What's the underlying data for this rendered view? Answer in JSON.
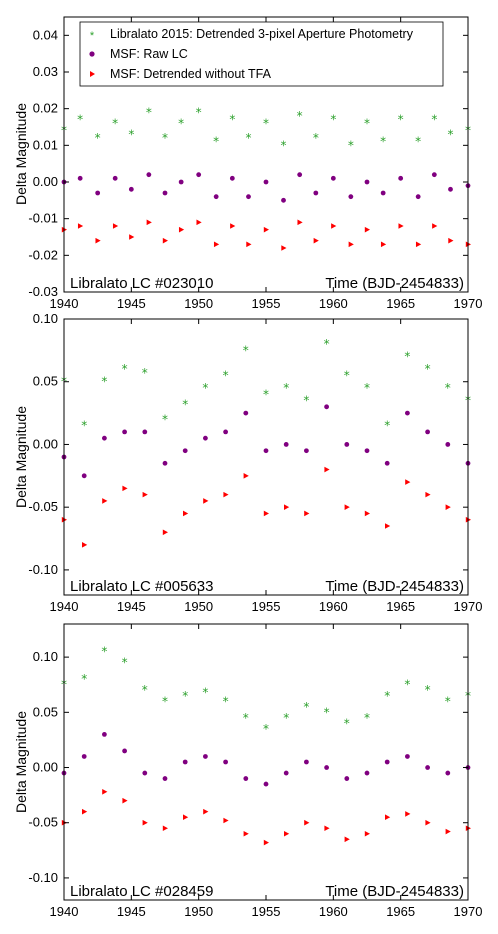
{
  "colors": {
    "green": "#2ca02c",
    "purple": "#800080",
    "red": "#ff0000"
  },
  "chart_data": [
    {
      "type": "scatter",
      "title": "Libralato LC #023010",
      "xlabel": "Time (BJD-2454833)",
      "ylabel": "Delta Magnitude",
      "xlim": [
        1940,
        1970
      ],
      "ylim": [
        -0.03,
        0.045
      ],
      "xticks": [
        1940,
        1945,
        1950,
        1955,
        1960,
        1965,
        1970
      ],
      "xtick_labels": [
        "1940",
        "1945",
        "1950",
        "1955",
        "1960",
        "1965",
        "1970"
      ],
      "yticks": [
        -0.03,
        -0.02,
        -0.01,
        0.0,
        0.01,
        0.02,
        0.03,
        0.04
      ],
      "ytick_labels": [
        "-0.03",
        "-0.02",
        "-0.01",
        "0.00",
        "0.01",
        "0.02",
        "0.03",
        "0.04"
      ],
      "grid": false,
      "legend": {
        "placement": "top-right",
        "entries": [
          {
            "label": "Libralato 2015: Detrended 3-pixel Aperture Photometry",
            "marker": "star",
            "color": "#2ca02c"
          },
          {
            "label": "MSF: Raw LC",
            "marker": "circle",
            "color": "#800080"
          },
          {
            "label": "MSF: Detrended without TFA",
            "marker": "triangle",
            "color": "#ff0000"
          }
        ]
      },
      "series": [
        {
          "name": "Libralato 2015: Detrended 3-pixel Aperture Photometry",
          "marker": "star",
          "color": "#2ca02c",
          "x": [
            1940,
            1941.2,
            1942.5,
            1943.8,
            1945,
            1946.3,
            1947.5,
            1948.7,
            1950,
            1951.3,
            1952.5,
            1953.7,
            1955,
            1956.3,
            1957.5,
            1958.7,
            1960,
            1961.3,
            1962.5,
            1963.7,
            1965,
            1966.3,
            1967.5,
            1968.7,
            1970
          ],
          "y": [
            0.014,
            0.017,
            0.012,
            0.016,
            0.013,
            0.019,
            0.012,
            0.016,
            0.019,
            0.011,
            0.017,
            0.012,
            0.016,
            0.01,
            0.018,
            0.012,
            0.017,
            0.01,
            0.016,
            0.011,
            0.017,
            0.011,
            0.017,
            0.013,
            0.014
          ]
        },
        {
          "name": "MSF: Raw LC",
          "marker": "circle",
          "color": "#800080",
          "x": [
            1940,
            1941.2,
            1942.5,
            1943.8,
            1945,
            1946.3,
            1947.5,
            1948.7,
            1950,
            1951.3,
            1952.5,
            1953.7,
            1955,
            1956.3,
            1957.5,
            1958.7,
            1960,
            1961.3,
            1962.5,
            1963.7,
            1965,
            1966.3,
            1967.5,
            1968.7,
            1970
          ],
          "y": [
            0.0,
            0.001,
            -0.003,
            0.001,
            -0.002,
            0.002,
            -0.003,
            0.0,
            0.002,
            -0.004,
            0.001,
            -0.004,
            0.0,
            -0.005,
            0.002,
            -0.003,
            0.001,
            -0.004,
            0.0,
            -0.003,
            0.001,
            -0.004,
            0.002,
            -0.002,
            -0.001
          ]
        },
        {
          "name": "MSF: Detrended without TFA",
          "marker": "triangle",
          "color": "#ff0000",
          "x": [
            1940,
            1941.2,
            1942.5,
            1943.8,
            1945,
            1946.3,
            1947.5,
            1948.7,
            1950,
            1951.3,
            1952.5,
            1953.7,
            1955,
            1956.3,
            1957.5,
            1958.7,
            1960,
            1961.3,
            1962.5,
            1963.7,
            1965,
            1966.3,
            1967.5,
            1968.7,
            1970
          ],
          "y": [
            -0.013,
            -0.012,
            -0.016,
            -0.012,
            -0.015,
            -0.011,
            -0.016,
            -0.013,
            -0.011,
            -0.017,
            -0.012,
            -0.017,
            -0.013,
            -0.018,
            -0.011,
            -0.016,
            -0.012,
            -0.017,
            -0.013,
            -0.017,
            -0.012,
            -0.017,
            -0.012,
            -0.016,
            -0.017
          ]
        }
      ]
    },
    {
      "type": "scatter",
      "title": "Libralato LC #005633",
      "xlabel": "Time (BJD-2454833)",
      "ylabel": "Delta Magnitude",
      "xlim": [
        1940,
        1970
      ],
      "ylim": [
        -0.12,
        0.1
      ],
      "xticks": [
        1940,
        1945,
        1950,
        1955,
        1960,
        1965,
        1970
      ],
      "xtick_labels": [
        "1940",
        "1945",
        "1950",
        "1955",
        "1960",
        "1965",
        "1970"
      ],
      "yticks": [
        -0.1,
        -0.05,
        0.0,
        0.05,
        0.1
      ],
      "ytick_labels": [
        "-0.10",
        "-0.05",
        "0.00",
        "0.05",
        "0.10"
      ],
      "grid": false,
      "series": [
        {
          "name": "Libralato 2015: Detrended 3-pixel Aperture Photometry",
          "marker": "star",
          "color": "#2ca02c",
          "x": [
            1940,
            1941.5,
            1943,
            1944.5,
            1946,
            1947.5,
            1949,
            1950.5,
            1952,
            1953.5,
            1955,
            1956.5,
            1958,
            1959.5,
            1961,
            1962.5,
            1964,
            1965.5,
            1967,
            1968.5,
            1970
          ],
          "y": [
            0.05,
            0.015,
            0.05,
            0.06,
            0.057,
            0.02,
            0.032,
            0.045,
            0.055,
            0.075,
            0.04,
            0.045,
            0.035,
            0.08,
            0.055,
            0.045,
            0.015,
            0.07,
            0.06,
            0.045,
            0.035
          ]
        },
        {
          "name": "MSF: Raw LC",
          "marker": "circle",
          "color": "#800080",
          "x": [
            1940,
            1941.5,
            1943,
            1944.5,
            1946,
            1947.5,
            1949,
            1950.5,
            1952,
            1953.5,
            1955,
            1956.5,
            1958,
            1959.5,
            1961,
            1962.5,
            1964,
            1965.5,
            1967,
            1968.5,
            1970
          ],
          "y": [
            -0.01,
            -0.025,
            0.005,
            0.01,
            0.01,
            -0.015,
            -0.005,
            0.005,
            0.01,
            0.025,
            -0.005,
            0.0,
            -0.005,
            0.03,
            0.0,
            -0.005,
            -0.015,
            0.025,
            0.01,
            0.0,
            -0.015
          ]
        },
        {
          "name": "MSF: Detrended without TFA",
          "marker": "triangle",
          "color": "#ff0000",
          "x": [
            1940,
            1941.5,
            1943,
            1944.5,
            1946,
            1947.5,
            1949,
            1950.5,
            1952,
            1953.5,
            1955,
            1956.5,
            1958,
            1959.5,
            1961,
            1962.5,
            1964,
            1965.5,
            1967,
            1968.5,
            1970
          ],
          "y": [
            -0.06,
            -0.08,
            -0.045,
            -0.035,
            -0.04,
            -0.07,
            -0.055,
            -0.045,
            -0.04,
            -0.025,
            -0.055,
            -0.05,
            -0.055,
            -0.02,
            -0.05,
            -0.055,
            -0.065,
            -0.03,
            -0.04,
            -0.05,
            -0.06
          ]
        }
      ]
    },
    {
      "type": "scatter",
      "title": "Libralato LC #028459",
      "xlabel": "Time (BJD-2454833)",
      "ylabel": "Delta Magnitude",
      "xlim": [
        1940,
        1970
      ],
      "ylim": [
        -0.12,
        0.13
      ],
      "xticks": [
        1940,
        1945,
        1950,
        1955,
        1960,
        1965,
        1970
      ],
      "xtick_labels": [
        "1940",
        "1945",
        "1950",
        "1955",
        "1960",
        "1965",
        "1970"
      ],
      "yticks": [
        -0.1,
        -0.05,
        0.0,
        0.05,
        0.1
      ],
      "ytick_labels": [
        "-0.10",
        "-0.05",
        "0.00",
        "0.05",
        "0.10"
      ],
      "grid": false,
      "series": [
        {
          "name": "Libralato 2015: Detrended 3-pixel Aperture Photometry",
          "marker": "star",
          "color": "#2ca02c",
          "x": [
            1940,
            1941.5,
            1943,
            1944.5,
            1946,
            1947.5,
            1949,
            1950.5,
            1952,
            1953.5,
            1955,
            1956.5,
            1958,
            1959.5,
            1961,
            1962.5,
            1964,
            1965.5,
            1967,
            1968.5,
            1970
          ],
          "y": [
            0.075,
            0.08,
            0.105,
            0.095,
            0.07,
            0.06,
            0.065,
            0.068,
            0.06,
            0.045,
            0.035,
            0.045,
            0.055,
            0.05,
            0.04,
            0.045,
            0.065,
            0.075,
            0.07,
            0.06,
            0.065
          ]
        },
        {
          "name": "MSF: Raw LC",
          "marker": "circle",
          "color": "#800080",
          "x": [
            1940,
            1941.5,
            1943,
            1944.5,
            1946,
            1947.5,
            1949,
            1950.5,
            1952,
            1953.5,
            1955,
            1956.5,
            1958,
            1959.5,
            1961,
            1962.5,
            1964,
            1965.5,
            1967,
            1968.5,
            1970
          ],
          "y": [
            -0.005,
            0.01,
            0.03,
            0.015,
            -0.005,
            -0.01,
            0.005,
            0.01,
            0.005,
            -0.01,
            -0.015,
            -0.005,
            0.005,
            0.0,
            -0.01,
            -0.005,
            0.005,
            0.01,
            0.0,
            -0.005,
            0.0
          ]
        },
        {
          "name": "MSF: Detrended without TFA",
          "marker": "triangle",
          "color": "#ff0000",
          "x": [
            1940,
            1941.5,
            1943,
            1944.5,
            1946,
            1947.5,
            1949,
            1950.5,
            1952,
            1953.5,
            1955,
            1956.5,
            1958,
            1959.5,
            1961,
            1962.5,
            1964,
            1965.5,
            1967,
            1968.5,
            1970
          ],
          "y": [
            -0.05,
            -0.04,
            -0.022,
            -0.03,
            -0.05,
            -0.055,
            -0.045,
            -0.04,
            -0.048,
            -0.06,
            -0.068,
            -0.06,
            -0.05,
            -0.055,
            -0.065,
            -0.06,
            -0.045,
            -0.042,
            -0.05,
            -0.058,
            -0.055
          ]
        }
      ]
    }
  ]
}
